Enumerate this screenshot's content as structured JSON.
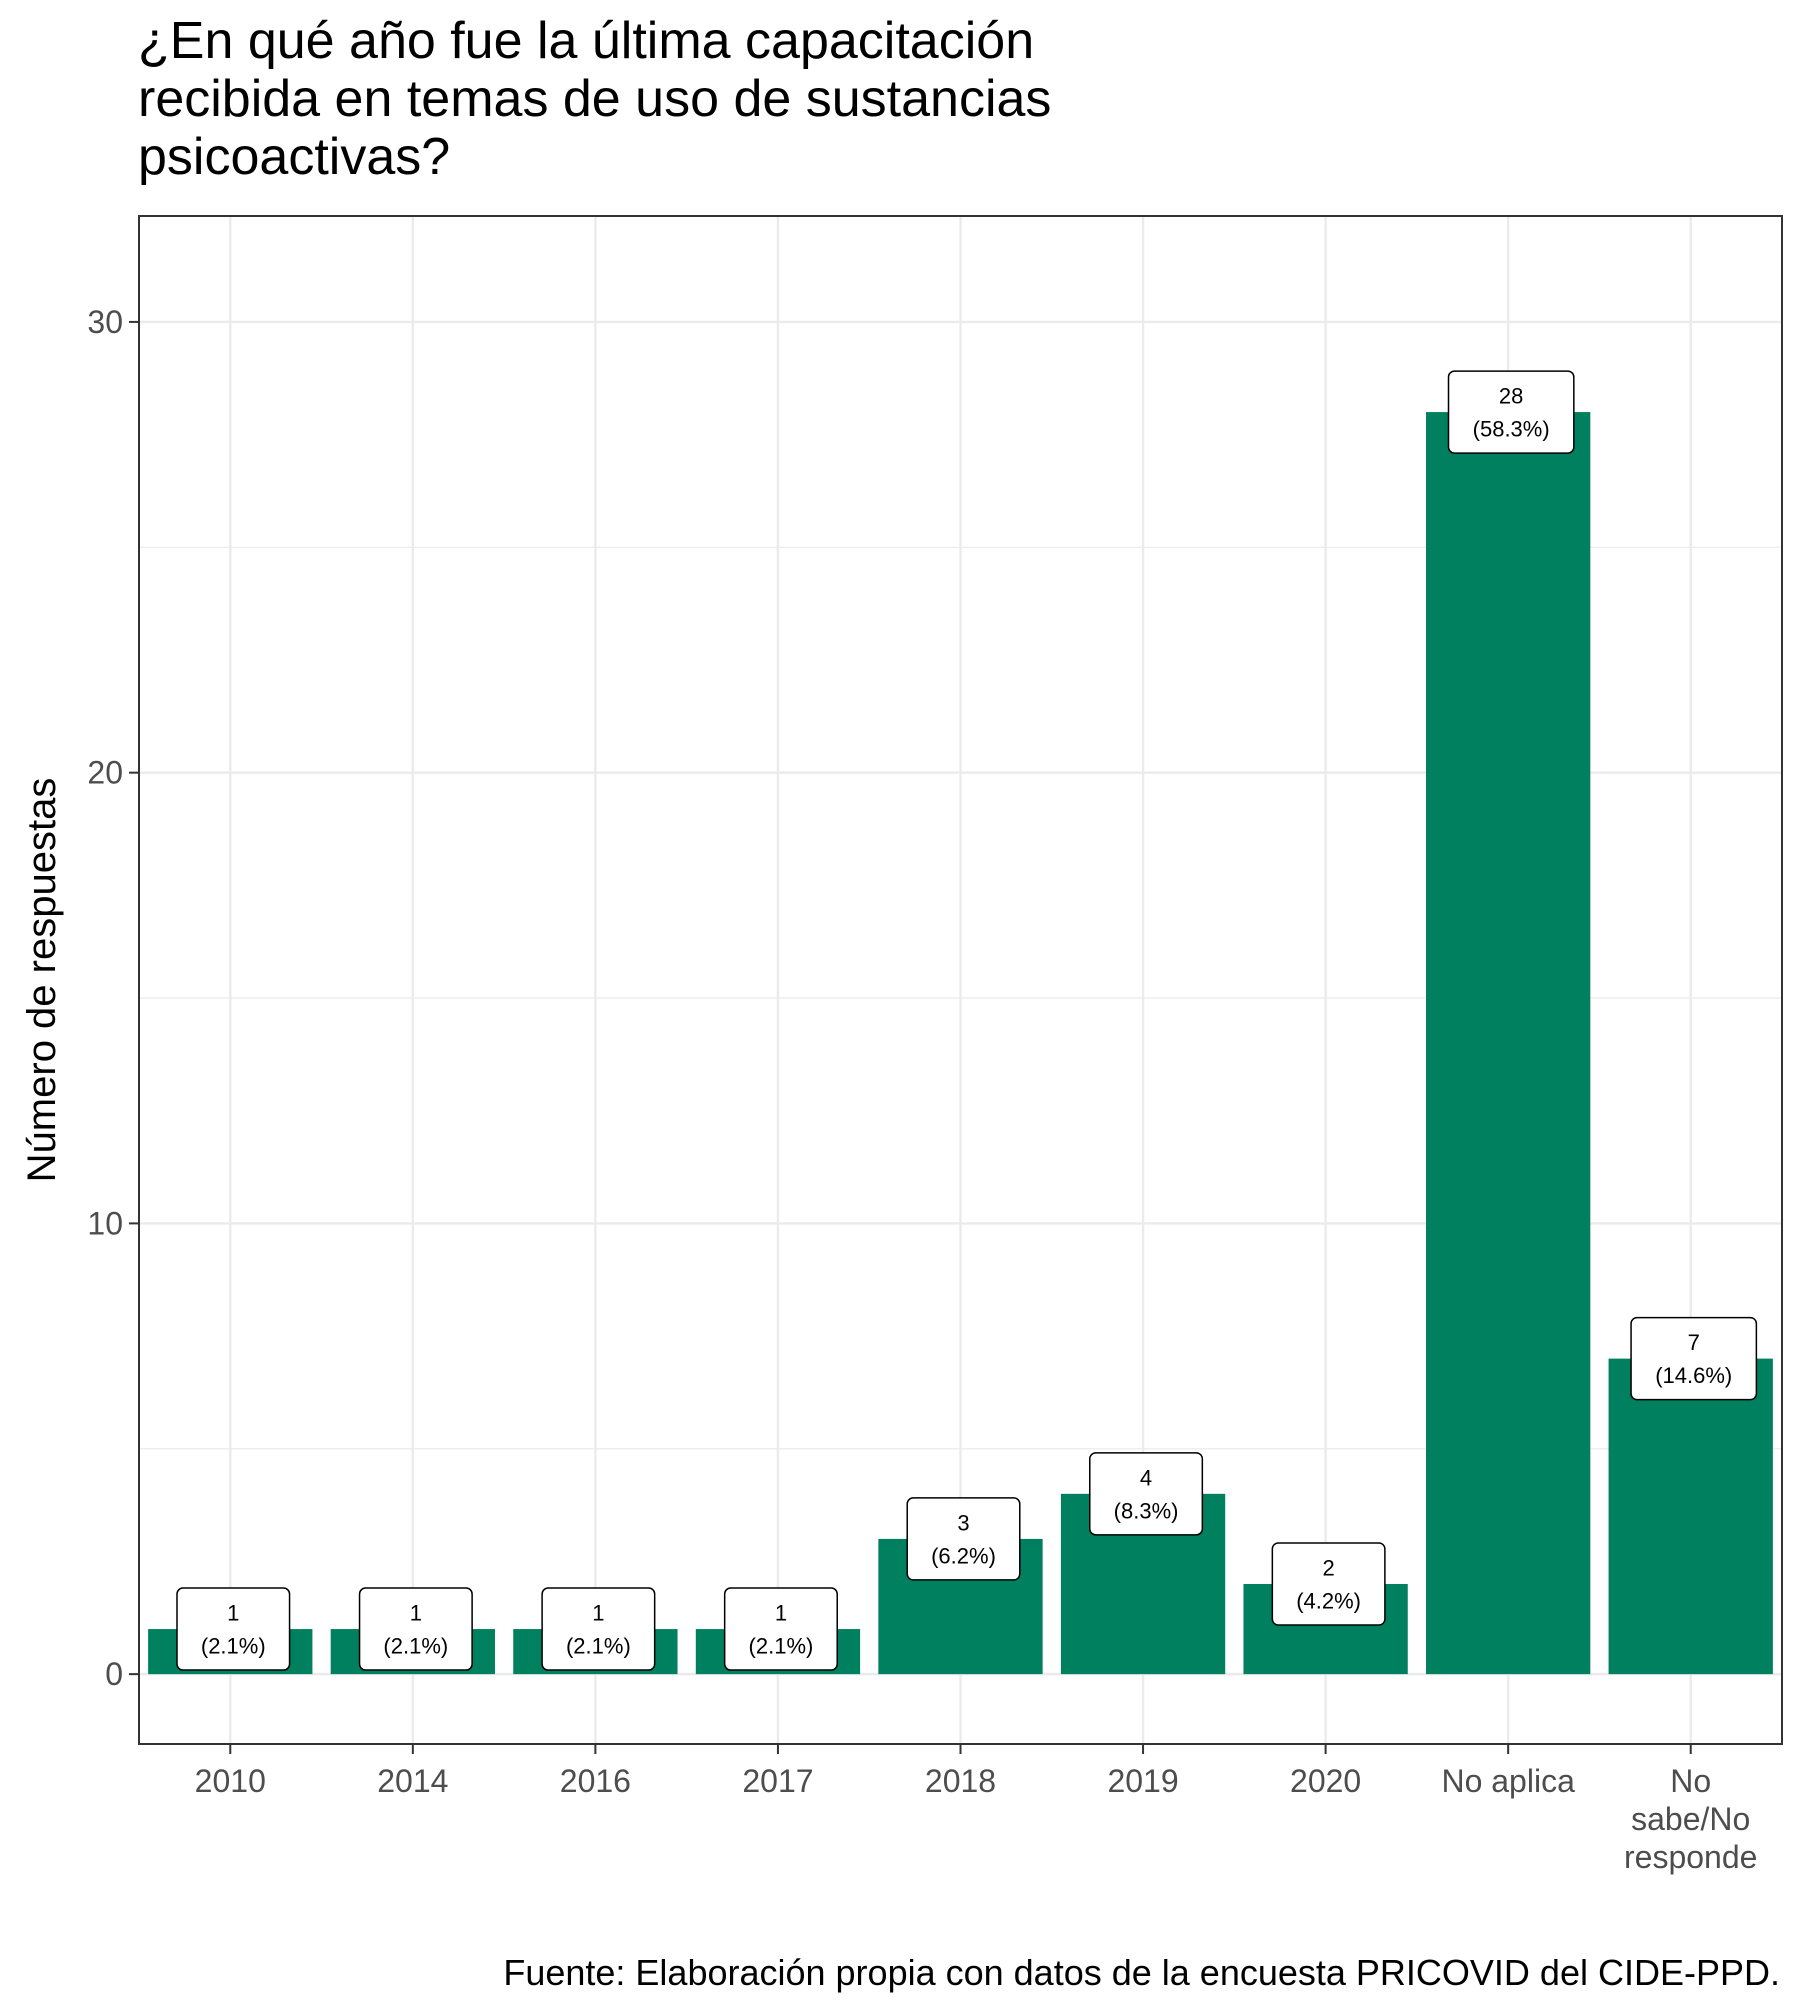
{
  "chart_data": {
    "type": "bar",
    "title": "¿En qué año fue la última capacitación\nrecibida en temas de uso de sustancias\npsicoactivas?",
    "xlabel": "",
    "ylabel": "Número de respuestas",
    "caption": "Fuente: Elaboración propia con datos de la encuesta PRICOVID del CIDE-PPD.",
    "categories": [
      "2010",
      "2014",
      "2016",
      "2017",
      "2018",
      "2019",
      "2020",
      "No aplica",
      "No\nsabe/No\nresponde"
    ],
    "values": [
      1,
      1,
      1,
      1,
      3,
      4,
      2,
      28,
      7
    ],
    "data_labels": [
      "1\n(2.1%)",
      "1\n(2.1%)",
      "1\n(2.1%)",
      "1\n(2.1%)",
      "3\n(6.2%)",
      "4\n(8.3%)",
      "2\n(4.2%)",
      "28\n(58.3%)",
      "7\n(14.6%)"
    ],
    "ylim": [
      -1.55,
      32.35
    ],
    "yticks": [
      0,
      10,
      20,
      30
    ],
    "ytick_labels": [
      "0",
      "10",
      "20",
      "30"
    ],
    "grid": true,
    "bar_color": "#00805E",
    "legend": "none"
  }
}
